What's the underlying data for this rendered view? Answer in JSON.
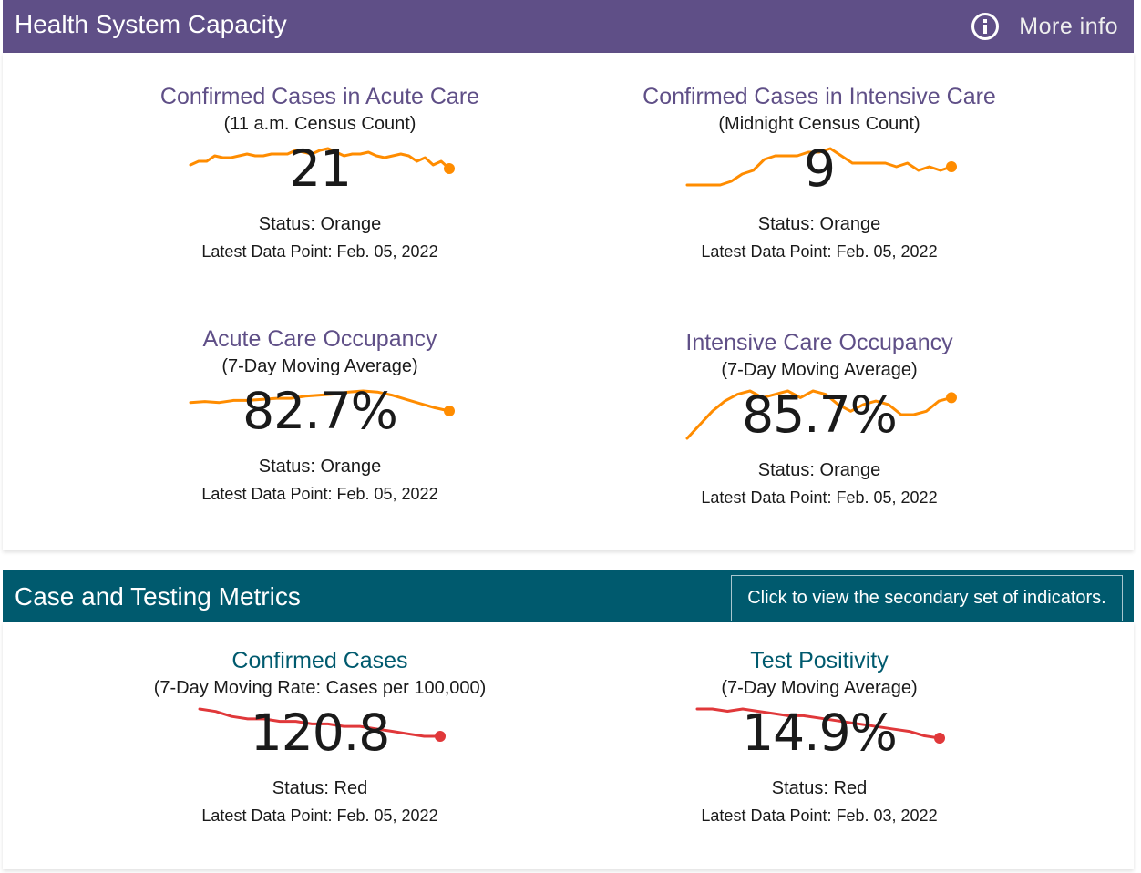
{
  "health": {
    "title": "Health System Capacity",
    "more_info": "More info",
    "color": "#5f4f87",
    "spark_color": "#ff8c00",
    "cards": [
      {
        "title": "Confirmed Cases in Acute Care",
        "subtitle": "(11 a.m. Census Count)",
        "value": "21",
        "status": "Status: Orange",
        "latest": "Latest Data Point: Feb. 05, 2022"
      },
      {
        "title": "Confirmed Cases in Intensive Care",
        "subtitle": "(Midnight Census Count)",
        "value": "9",
        "status": "Status: Orange",
        "latest": "Latest Data Point: Feb. 05, 2022"
      },
      {
        "title": "Acute Care Occupancy",
        "subtitle": "(7-Day Moving Average)",
        "value": "82.7%",
        "status": "Status: Orange",
        "latest": "Latest Data Point: Feb. 05, 2022"
      },
      {
        "title": "Intensive Care Occupancy",
        "subtitle": "(7-Day Moving Average)",
        "value": "85.7%",
        "status": "Status: Orange",
        "latest": "Latest Data Point: Feb. 05, 2022"
      }
    ]
  },
  "testing": {
    "title": "Case and Testing Metrics",
    "secondary_button": "Click to view the secondary set of indicators.",
    "color": "#005a6e",
    "spark_color": "#e0383a",
    "cards": [
      {
        "title": "Confirmed Cases",
        "subtitle": "(7-Day Moving Rate: Cases per 100,000)",
        "value": "120.8",
        "status": "Status: Red",
        "latest": "Latest Data Point: Feb. 05, 2022"
      },
      {
        "title": "Test Positivity",
        "subtitle": "(7-Day Moving Average)",
        "value": "14.9%",
        "status": "Status: Red",
        "latest": "Latest Data Point: Feb. 03, 2022"
      }
    ]
  },
  "sparklines": [
    [
      10,
      12,
      12,
      15,
      14,
      14,
      15,
      16,
      15,
      15,
      16,
      16,
      16,
      18,
      17,
      16,
      18,
      19,
      17,
      15,
      16,
      16,
      17,
      15,
      14,
      15,
      16,
      15,
      12,
      14,
      10,
      12,
      8
    ],
    [
      0,
      0,
      0,
      0,
      2,
      6,
      8,
      14,
      16,
      16,
      16,
      18,
      18,
      20,
      16,
      12,
      12,
      12,
      12,
      10,
      12,
      8,
      10,
      8,
      10
    ],
    [
      0,
      2,
      0,
      4,
      4,
      6,
      8,
      8,
      12,
      14,
      16,
      20,
      22,
      20,
      14,
      6,
      -2,
      -10,
      -16
    ],
    [
      0,
      8,
      16,
      22,
      26,
      28,
      24,
      26,
      28,
      24,
      28,
      26,
      20,
      16,
      20,
      22,
      20,
      14,
      14,
      16,
      22,
      24
    ]
  ],
  "sparklines_red": [
    [
      20,
      18,
      14,
      12,
      12,
      10,
      10,
      8,
      8,
      6,
      6,
      4,
      2,
      0,
      -2,
      -2
    ],
    [
      20,
      20,
      18,
      20,
      18,
      16,
      14,
      14,
      12,
      10,
      8,
      6,
      4,
      2,
      0,
      -4,
      -6
    ]
  ]
}
